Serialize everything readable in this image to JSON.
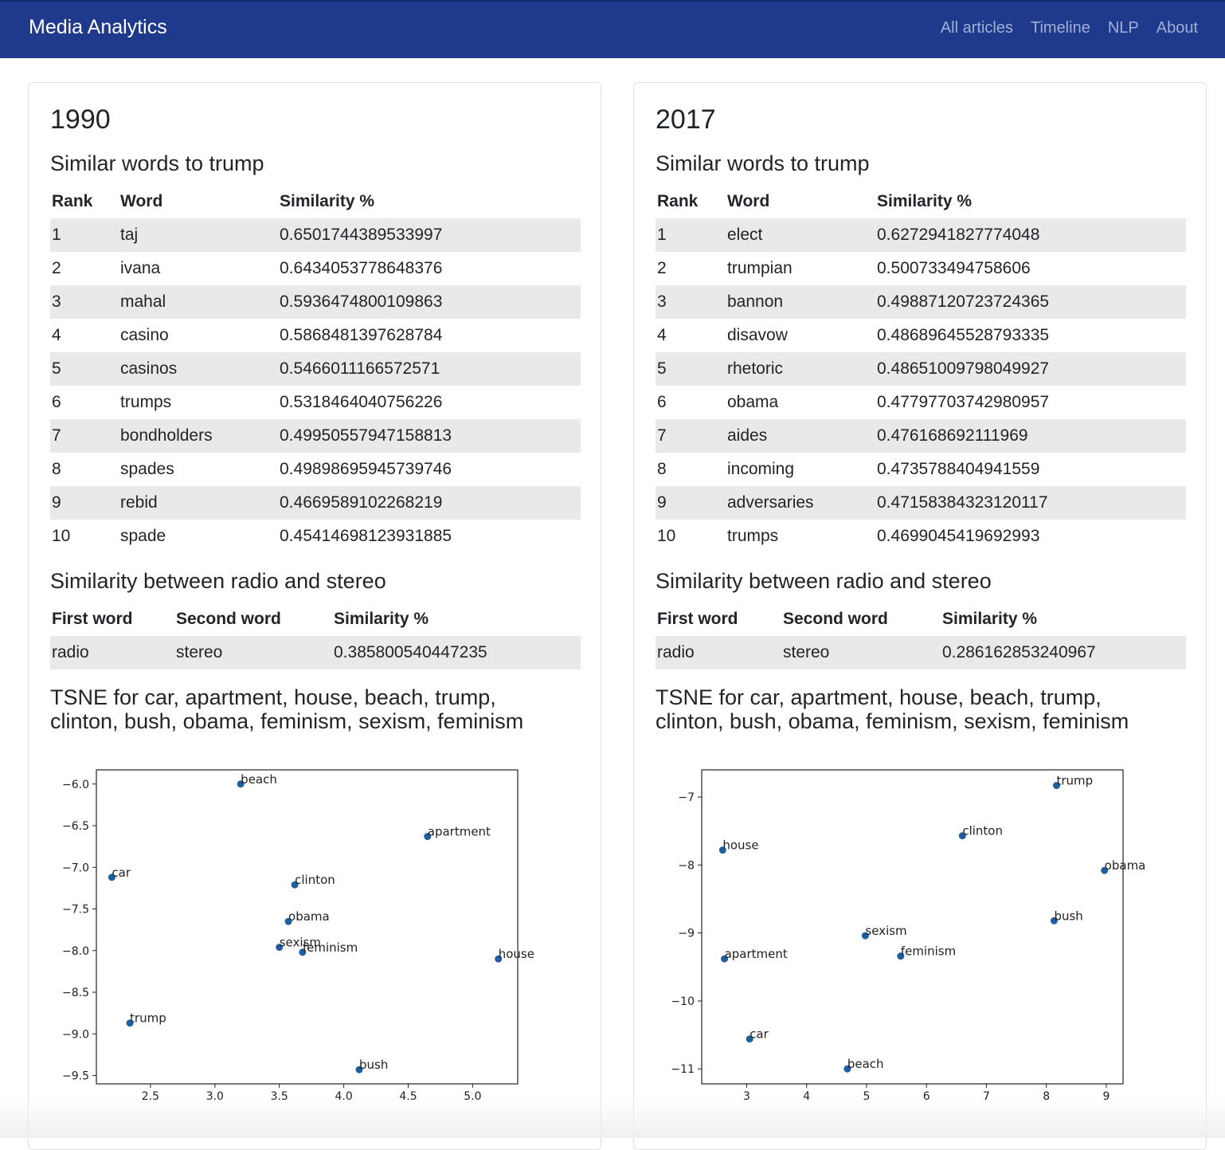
{
  "navbar": {
    "brand": "Media Analytics",
    "links": [
      "All articles",
      "Timeline",
      "NLP",
      "About"
    ]
  },
  "panels": [
    {
      "year": "1990",
      "similar_title": "Similar words to trump",
      "similar_headers": [
        "Rank",
        "Word",
        "Similarity %"
      ],
      "similar_rows": [
        [
          "1",
          "taj",
          "0.6501744389533997"
        ],
        [
          "2",
          "ivana",
          "0.6434053778648376"
        ],
        [
          "3",
          "mahal",
          "0.5936474800109863"
        ],
        [
          "4",
          "casino",
          "0.5868481397628784"
        ],
        [
          "5",
          "casinos",
          "0.5466011166572571"
        ],
        [
          "6",
          "trumps",
          "0.5318464040756226"
        ],
        [
          "7",
          "bondholders",
          "0.49950557947158813"
        ],
        [
          "8",
          "spades",
          "0.49898695945739746"
        ],
        [
          "9",
          "rebid",
          "0.4669589102268219"
        ],
        [
          "10",
          "spade",
          "0.45414698123931885"
        ]
      ],
      "pair_title": "Similarity between radio and stereo",
      "pair_headers": [
        "First word",
        "Second word",
        "Similarity %"
      ],
      "pair_row": [
        "radio",
        "stereo",
        "0.385800540447235"
      ],
      "tsne_title_line1": "TSNE for car, apartment, house, beach, trump,",
      "tsne_title_line2": "clinton, bush, obama, feminism, sexism, feminism"
    },
    {
      "year": "2017",
      "similar_title": "Similar words to trump",
      "similar_headers": [
        "Rank",
        "Word",
        "Similarity %"
      ],
      "similar_rows": [
        [
          "1",
          "elect",
          "0.6272941827774048"
        ],
        [
          "2",
          "trumpian",
          "0.500733494758606"
        ],
        [
          "3",
          "bannon",
          "0.49887120723724365"
        ],
        [
          "4",
          "disavow",
          "0.48689645528793335"
        ],
        [
          "5",
          "rhetoric",
          "0.48651009798049927"
        ],
        [
          "6",
          "obama",
          "0.47797703742980957"
        ],
        [
          "7",
          "aides",
          "0.476168692111969"
        ],
        [
          "8",
          "incoming",
          "0.4735788404941559"
        ],
        [
          "9",
          "adversaries",
          "0.47158384323120117"
        ],
        [
          "10",
          "trumps",
          "0.4699045419692993"
        ]
      ],
      "pair_title": "Similarity between radio and stereo",
      "pair_headers": [
        "First word",
        "Second word",
        "Similarity %"
      ],
      "pair_row": [
        "radio",
        "stereo",
        "0.286162853240967"
      ],
      "tsne_title_line1": "TSNE for car, apartment, house, beach, trump,",
      "tsne_title_line2": "clinton, bush, obama, feminism, sexism, feminism"
    }
  ],
  "chart_data": [
    {
      "type": "scatter",
      "title": "",
      "xlabel": "",
      "ylabel": "",
      "xlim": [
        2.08,
        5.35
      ],
      "ylim": [
        -9.6,
        -5.83
      ],
      "xticks": [
        2.5,
        3.0,
        3.5,
        4.0,
        4.5,
        5.0
      ],
      "xtick_labels": [
        "2.5",
        "3.0",
        "3.5",
        "4.0",
        "4.5",
        "5.0"
      ],
      "yticks": [
        -6.0,
        -6.5,
        -7.0,
        -7.5,
        -8.0,
        -8.5,
        -9.0,
        -9.5
      ],
      "ytick_labels": [
        "−6.0",
        "−6.5",
        "−7.0",
        "−7.5",
        "−8.0",
        "−8.5",
        "−9.0",
        "−9.5"
      ],
      "grid": false,
      "marker_color": "#1f5fa0",
      "points": [
        {
          "label": "beach",
          "x": 3.2,
          "y": -6.0
        },
        {
          "label": "apartment",
          "x": 4.65,
          "y": -6.63
        },
        {
          "label": "car",
          "x": 2.2,
          "y": -7.12
        },
        {
          "label": "clinton",
          "x": 3.62,
          "y": -7.21
        },
        {
          "label": "obama",
          "x": 3.57,
          "y": -7.65
        },
        {
          "label": "sexism",
          "x": 3.5,
          "y": -7.96
        },
        {
          "label": "feminism",
          "x": 3.68,
          "y": -8.02
        },
        {
          "label": "house",
          "x": 5.2,
          "y": -8.1
        },
        {
          "label": "trump",
          "x": 2.34,
          "y": -8.87
        },
        {
          "label": "bush",
          "x": 4.12,
          "y": -9.43
        }
      ]
    },
    {
      "type": "scatter",
      "title": "",
      "xlabel": "",
      "ylabel": "",
      "xlim": [
        2.25,
        9.28
      ],
      "ylim": [
        -11.22,
        -6.6
      ],
      "xticks": [
        3,
        4,
        5,
        6,
        7,
        8,
        9
      ],
      "xtick_labels": [
        "3",
        "4",
        "5",
        "6",
        "7",
        "8",
        "9"
      ],
      "yticks": [
        -7,
        -8,
        -9,
        -10,
        -11
      ],
      "ytick_labels": [
        "−7",
        "−8",
        "−9",
        "−10",
        "−11"
      ],
      "grid": false,
      "marker_color": "#1f5fa0",
      "points": [
        {
          "label": "trump",
          "x": 8.17,
          "y": -6.83
        },
        {
          "label": "clinton",
          "x": 6.6,
          "y": -7.57
        },
        {
          "label": "house",
          "x": 2.6,
          "y": -7.78
        },
        {
          "label": "obama",
          "x": 8.97,
          "y": -8.08
        },
        {
          "label": "bush",
          "x": 8.13,
          "y": -8.82
        },
        {
          "label": "sexism",
          "x": 4.98,
          "y": -9.04
        },
        {
          "label": "feminism",
          "x": 5.57,
          "y": -9.34
        },
        {
          "label": "apartment",
          "x": 2.63,
          "y": -9.38
        },
        {
          "label": "car",
          "x": 3.05,
          "y": -10.56
        },
        {
          "label": "beach",
          "x": 4.68,
          "y": -11.0
        }
      ]
    }
  ]
}
